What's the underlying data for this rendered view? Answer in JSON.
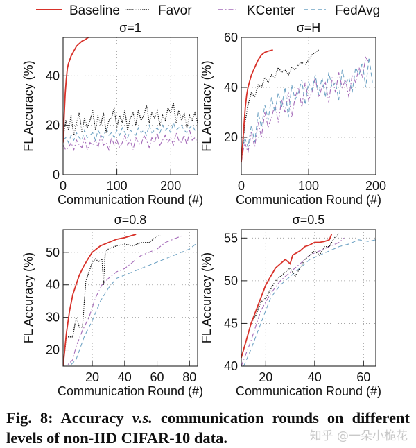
{
  "legend": [
    {
      "name": "Baseline",
      "color": "#d8322a",
      "style": "solid"
    },
    {
      "name": "Favor",
      "color": "#111111",
      "style": "dotted"
    },
    {
      "name": "KCenter",
      "color": "#a46ab8",
      "style": "dashdot"
    },
    {
      "name": "FedAvg",
      "color": "#6fa3c4",
      "style": "dashed"
    }
  ],
  "caption": {
    "prefix": "Fig. 8: Accuracy ",
    "italic": "v.s.",
    "suffix": " communication rounds on different levels of non-IID CIFAR-10 data."
  },
  "watermark": "知乎 @一朵小桅花",
  "chart_data": [
    {
      "type": "line",
      "title": "σ=1",
      "xlabel": "Communication Round (#)",
      "ylabel": "FL Accuracy (%)",
      "xlim": [
        0,
        250
      ],
      "ylim": [
        0,
        55.5
      ],
      "xticks": [
        0,
        100,
        200
      ],
      "yticks": [
        0,
        20,
        40
      ],
      "grid": true,
      "series": [
        {
          "name": "Baseline",
          "x": [
            0,
            2,
            4,
            6,
            8,
            10,
            15,
            20,
            25,
            30,
            35,
            40,
            47
          ],
          "y": [
            13,
            24,
            33,
            39,
            43,
            45,
            48,
            50,
            52,
            53,
            54,
            54.5,
            55.5
          ]
        },
        {
          "name": "Favor",
          "x": [
            0,
            5,
            10,
            15,
            20,
            25,
            30,
            35,
            40,
            45,
            50,
            55,
            60,
            65,
            70,
            75,
            80,
            85,
            90,
            95,
            100,
            105,
            110,
            115,
            120,
            125,
            130,
            135,
            140,
            145,
            150,
            155,
            160,
            165,
            170,
            175,
            180,
            185,
            190,
            195,
            200,
            205,
            210,
            215,
            220,
            225,
            230,
            235,
            240,
            245,
            250
          ],
          "y": [
            14,
            22,
            18,
            24,
            16,
            21,
            25,
            17,
            23,
            19,
            22,
            26,
            18,
            24,
            20,
            25,
            17,
            22,
            23,
            27,
            19,
            24,
            21,
            26,
            18,
            23,
            25,
            20,
            26,
            22,
            24,
            28,
            21,
            25,
            23,
            26,
            20,
            24,
            22,
            27,
            25,
            29,
            21,
            26,
            22,
            25,
            19,
            24,
            22,
            25,
            21
          ]
        },
        {
          "name": "KCenter",
          "x": [
            0,
            5,
            10,
            15,
            20,
            25,
            30,
            35,
            40,
            45,
            50,
            55,
            60,
            65,
            70,
            75,
            80,
            85,
            90,
            95,
            100,
            105,
            110,
            115,
            120,
            125,
            130,
            135,
            140,
            145,
            150,
            155,
            160,
            165,
            170,
            175,
            180,
            185,
            190,
            195,
            200,
            205,
            210,
            215,
            220,
            225,
            230,
            235,
            240,
            245,
            250
          ],
          "y": [
            12,
            10,
            11,
            13,
            10,
            14,
            12,
            11,
            15,
            10,
            13,
            12,
            14,
            11,
            16,
            12,
            13,
            10,
            15,
            12,
            14,
            11,
            13,
            16,
            12,
            14,
            10,
            15,
            13,
            12,
            16,
            14,
            11,
            15,
            13,
            17,
            12,
            14,
            16,
            13,
            15,
            12,
            17,
            14,
            13,
            16,
            12,
            18,
            14,
            15,
            13
          ]
        },
        {
          "name": "FedAvg",
          "x": [
            0,
            5,
            10,
            15,
            20,
            25,
            30,
            35,
            40,
            45,
            50,
            55,
            60,
            65,
            70,
            75,
            80,
            85,
            90,
            95,
            100,
            105,
            110,
            115,
            120,
            125,
            130,
            135,
            140,
            145,
            150,
            155,
            160,
            165,
            170,
            175,
            180,
            185,
            190,
            195,
            200,
            205,
            210,
            215,
            220,
            225,
            230,
            235,
            240,
            245,
            250
          ],
          "y": [
            14,
            15,
            13,
            16,
            14,
            17,
            15,
            14,
            18,
            15,
            16,
            17,
            14,
            18,
            16,
            15,
            19,
            16,
            17,
            15,
            18,
            16,
            19,
            17,
            15,
            18,
            17,
            16,
            19,
            17,
            18,
            16,
            20,
            17,
            18,
            19,
            17,
            20,
            18,
            19,
            17,
            21,
            18,
            19,
            20,
            18,
            17,
            19,
            20,
            18,
            19
          ]
        }
      ]
    },
    {
      "type": "line",
      "title": "σ=H",
      "xlabel": "Communication Round (#)",
      "ylabel": "FL Accuracy (%)",
      "xlim": [
        0,
        200
      ],
      "ylim": [
        5,
        60
      ],
      "xticks": [
        0,
        100,
        200
      ],
      "yticks": [
        20,
        40,
        60
      ],
      "grid": true,
      "series": [
        {
          "name": "Baseline",
          "x": [
            0,
            2,
            4,
            6,
            8,
            10,
            12,
            15,
            20,
            25,
            30,
            35,
            40,
            47
          ],
          "y": [
            10,
            17,
            25,
            32,
            37,
            40,
            42,
            45,
            48,
            51,
            53,
            54,
            54.5,
            55
          ]
        },
        {
          "name": "Favor",
          "x": [
            0,
            5,
            10,
            15,
            20,
            25,
            30,
            35,
            40,
            45,
            50,
            55,
            60,
            65,
            70,
            75,
            80,
            85,
            90,
            95,
            100,
            105,
            110,
            115
          ],
          "y": [
            10,
            25,
            33,
            38,
            36,
            41,
            40,
            44,
            42,
            45,
            44,
            48,
            46,
            47,
            45,
            48,
            47,
            49,
            50,
            49,
            51,
            53,
            54,
            55
          ]
        },
        {
          "name": "KCenter",
          "x": [
            0,
            5,
            10,
            15,
            20,
            25,
            30,
            35,
            40,
            45,
            50,
            55,
            60,
            65,
            70,
            75,
            80,
            85,
            90,
            95,
            100,
            105,
            110,
            115,
            120,
            125,
            130,
            135,
            140,
            145,
            150,
            155,
            160,
            165,
            170,
            175,
            180,
            185,
            190
          ],
          "y": [
            10,
            18,
            14,
            22,
            16,
            26,
            20,
            30,
            24,
            28,
            33,
            26,
            35,
            30,
            38,
            28,
            36,
            40,
            32,
            42,
            35,
            38,
            44,
            36,
            40,
            42,
            34,
            44,
            38,
            46,
            40,
            43,
            36,
            45,
            42,
            48,
            44,
            52,
            50
          ]
        },
        {
          "name": "FedAvg",
          "x": [
            0,
            5,
            10,
            15,
            20,
            25,
            30,
            35,
            40,
            45,
            50,
            55,
            60,
            65,
            70,
            75,
            80,
            85,
            90,
            95,
            100,
            105,
            110,
            115,
            120,
            125,
            130,
            135,
            140,
            145,
            150,
            155,
            160,
            165,
            170,
            175,
            180,
            185,
            190,
            195
          ],
          "y": [
            12,
            20,
            16,
            25,
            18,
            30,
            24,
            33,
            27,
            36,
            30,
            38,
            32,
            40,
            28,
            41,
            35,
            38,
            43,
            33,
            42,
            39,
            45,
            37,
            44,
            36,
            46,
            40,
            42,
            35,
            47,
            41,
            44,
            38,
            48,
            45,
            50,
            40,
            52,
            42
          ]
        }
      ]
    },
    {
      "type": "line",
      "title": "σ=0.8",
      "xlabel": "Communication Round (#)",
      "ylabel": "FL Accuracy (%)",
      "xlim": [
        2,
        85
      ],
      "ylim": [
        15,
        57
      ],
      "xticks": [
        20,
        40,
        60,
        80
      ],
      "yticks": [
        20,
        30,
        40,
        50
      ],
      "grid": true,
      "series": [
        {
          "name": "Baseline",
          "x": [
            2,
            4,
            6,
            8,
            10,
            12,
            15,
            18,
            20,
            25,
            30,
            35,
            40,
            47
          ],
          "y": [
            15,
            25,
            32,
            37,
            40,
            43,
            46,
            48.5,
            50,
            52,
            53,
            54,
            54.5,
            55.5
          ]
        },
        {
          "name": "Favor",
          "x": [
            2,
            4,
            6,
            8,
            10,
            12,
            14,
            16,
            18,
            20,
            22,
            24,
            26,
            27,
            28,
            30,
            35,
            40,
            45,
            50,
            55,
            60,
            62
          ],
          "y": [
            15,
            24,
            24,
            24,
            30,
            27,
            27,
            41,
            44,
            47,
            48,
            47,
            48,
            40,
            50,
            51,
            52,
            52.5,
            52,
            53,
            53,
            55,
            55
          ]
        },
        {
          "name": "KCenter",
          "x": [
            2,
            8,
            10,
            14,
            18,
            22,
            26,
            30,
            35,
            40,
            45,
            50,
            55,
            60,
            65,
            70,
            75
          ],
          "y": [
            14,
            17,
            21,
            26,
            30,
            36,
            40,
            42,
            44,
            45,
            47,
            49,
            50,
            51,
            53,
            54,
            55
          ]
        },
        {
          "name": "FedAvg",
          "x": [
            4,
            10,
            15,
            20,
            25,
            30,
            35,
            40,
            45,
            50,
            55,
            60,
            65,
            70,
            75,
            80,
            85
          ],
          "y": [
            14,
            17,
            24,
            29,
            35,
            39,
            42,
            43,
            44,
            45,
            46,
            47,
            48,
            49,
            50,
            51,
            53
          ]
        }
      ]
    },
    {
      "type": "line",
      "title": "σ=0.5",
      "xlabel": "Communication Round (#)",
      "ylabel": "FL Accuracy (%)",
      "xlim": [
        10,
        65
      ],
      "ylim": [
        40,
        56
      ],
      "xticks": [
        20,
        40,
        60
      ],
      "yticks": [
        40,
        45,
        50,
        55
      ],
      "grid": true,
      "series": [
        {
          "name": "Baseline",
          "x": [
            10,
            12,
            14,
            16,
            18,
            20,
            22,
            24,
            26,
            28,
            30,
            31,
            34,
            36,
            38,
            40,
            42,
            44,
            46,
            47
          ],
          "y": [
            41,
            43,
            45,
            46.5,
            48,
            49.5,
            50.5,
            51.5,
            52,
            52.5,
            52,
            53,
            53.5,
            54,
            54.2,
            54.5,
            54.5,
            54.6,
            54.8,
            55.5
          ]
        },
        {
          "name": "Favor",
          "x": [
            10,
            12,
            14,
            16,
            18,
            20,
            22,
            24,
            26,
            28,
            30,
            32,
            34,
            36,
            38,
            40,
            42,
            44,
            46,
            48,
            50
          ],
          "y": [
            41,
            43,
            45,
            46,
            47.5,
            48,
            49,
            50,
            50.5,
            51,
            51.5,
            50.5,
            51.5,
            52.5,
            53,
            53.5,
            53,
            54,
            54,
            55,
            55.5
          ]
        },
        {
          "name": "KCenter",
          "x": [
            10,
            14,
            18,
            22,
            26,
            30,
            34,
            38,
            42,
            46,
            50,
            52
          ],
          "y": [
            40,
            43,
            46.5,
            48.5,
            50,
            51,
            52,
            53,
            53.5,
            54,
            54.5,
            55
          ]
        },
        {
          "name": "FedAvg",
          "x": [
            11,
            14,
            18,
            22,
            26,
            30,
            34,
            38,
            42,
            46,
            50,
            54,
            58,
            62,
            65
          ],
          "y": [
            40,
            42,
            45,
            48,
            49.5,
            50.5,
            51.5,
            52.5,
            53,
            53.5,
            54,
            54.3,
            54.8,
            54.6,
            54.8
          ]
        }
      ]
    }
  ]
}
